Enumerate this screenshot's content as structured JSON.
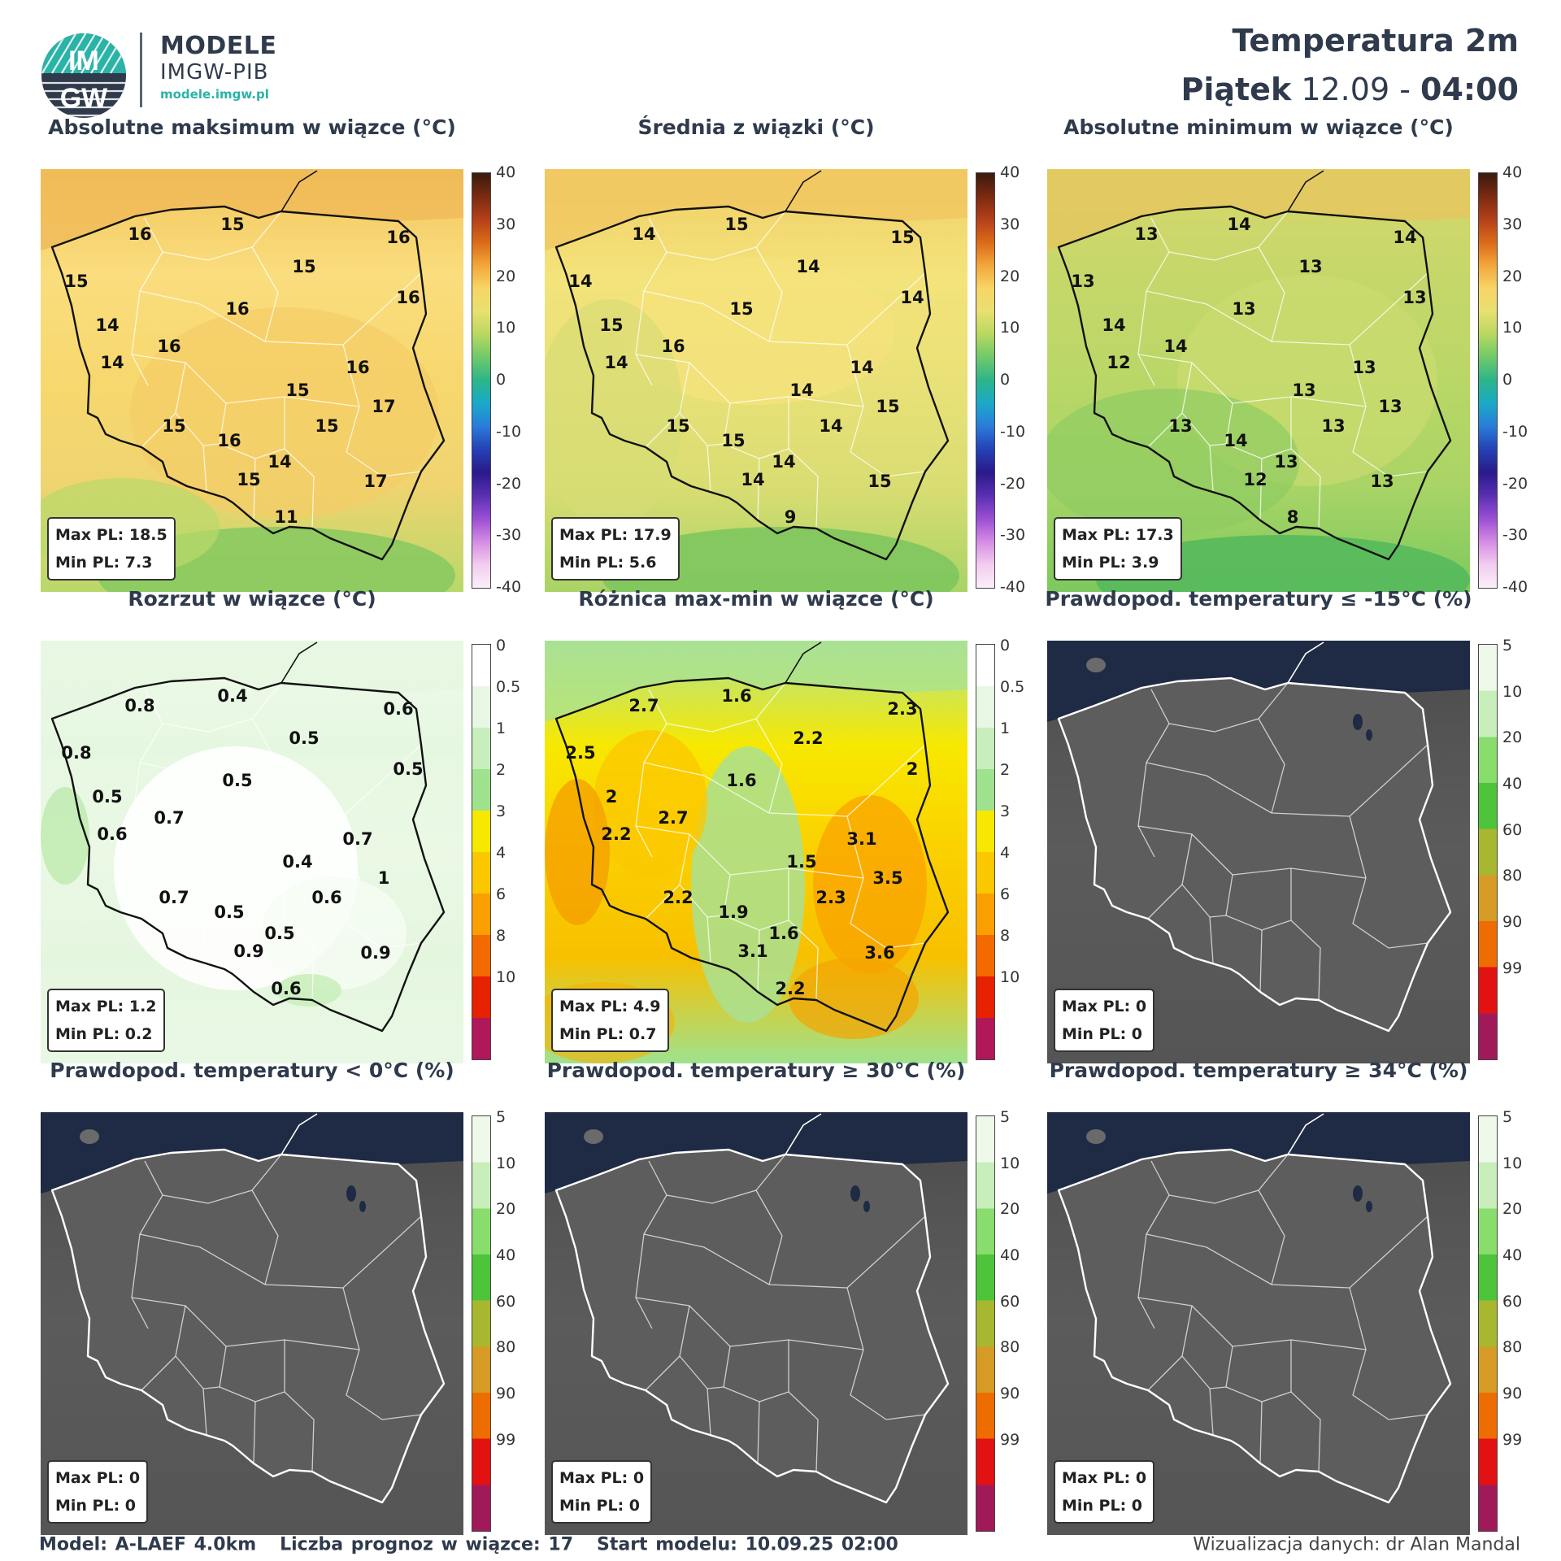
{
  "header": {
    "logo_text_top": "IM",
    "logo_text_bottom": "GW",
    "brand_main": "MODELE",
    "brand_sub": "IMGW-PIB",
    "brand_url": "modele.imgw.pl",
    "title": "Temperatura 2m",
    "day": "Piątek",
    "date": "12.09",
    "separator": "-",
    "hour": "04:00"
  },
  "colorbars": {
    "temperature": {
      "ticks": [
        "40",
        "30",
        "20",
        "10",
        "0",
        "-10",
        "-20",
        "-30",
        "-40"
      ],
      "colors": [
        "#3b1a0e",
        "#7a2a10",
        "#b3401b",
        "#db6a18",
        "#f2a63a",
        "#f7d566",
        "#e9e070",
        "#b8d860",
        "#6ec96a",
        "#2cb58a",
        "#1aa9c9",
        "#2a7bd9",
        "#2441b5",
        "#2a1a8a",
        "#5a2fb2",
        "#9b4fd3",
        "#d58ce3",
        "#f3cdef",
        "#fbeefb"
      ]
    },
    "spread": {
      "ticks": [
        "0",
        "0.5",
        "1",
        "2",
        "3",
        "4",
        "6",
        "8",
        "10"
      ],
      "colors": [
        "#ffffff",
        "#e8f7e3",
        "#c8eebd",
        "#9fe28e",
        "#f7e800",
        "#fbc800",
        "#f9a000",
        "#f26a00",
        "#e62200",
        "#b0185a"
      ]
    },
    "probability": {
      "ticks": [
        "5",
        "10",
        "20",
        "40",
        "60",
        "80",
        "90",
        "99"
      ],
      "colors": [
        "#eef9ea",
        "#c8efbb",
        "#88dd6c",
        "#4dc43a",
        "#a7b830",
        "#d69b25",
        "#ee6d00",
        "#e31212",
        "#a01a5a"
      ]
    }
  },
  "panels": [
    {
      "title": "Absolutne maksimum w wiązce (°C)",
      "kind": "temp",
      "shade": "warm",
      "stats": {
        "max": "Max PL: 18.5",
        "min": "Min PL: 7.3"
      },
      "labels": [
        "16",
        "15",
        "16",
        "15",
        "15",
        "16",
        "14",
        "16",
        "16",
        "14",
        "16",
        "15",
        "17",
        "15",
        "15",
        "16",
        "14",
        "15",
        "17",
        "11"
      ]
    },
    {
      "title": "Średnia z wiązki (°C)",
      "kind": "temp",
      "shade": "mild",
      "stats": {
        "max": "Max PL: 17.9",
        "min": "Min PL: 5.6"
      },
      "labels": [
        "14",
        "15",
        "15",
        "14",
        "14",
        "14",
        "15",
        "15",
        "16",
        "14",
        "14",
        "14",
        "15",
        "15",
        "14",
        "15",
        "14",
        "14",
        "15",
        "9"
      ]
    },
    {
      "title": "Absolutne minimum w wiązce (°C)",
      "kind": "temp",
      "shade": "cool",
      "stats": {
        "max": "Max PL: 17.3",
        "min": "Min PL: 3.9"
      },
      "labels": [
        "13",
        "14",
        "14",
        "13",
        "13",
        "13",
        "14",
        "13",
        "14",
        "12",
        "13",
        "13",
        "13",
        "13",
        "13",
        "14",
        "13",
        "12",
        "13",
        "8"
      ]
    },
    {
      "title": "Rozrzut w wiązce (°C)",
      "kind": "spread",
      "shade": "spread",
      "stats": {
        "max": "Max PL: 1.2",
        "min": "Min PL: 0.2"
      },
      "labels": [
        "0.8",
        "0.4",
        "0.6",
        "0.8",
        "0.5",
        "0.5",
        "0.5",
        "0.5",
        "0.7",
        "0.6",
        "0.7",
        "0.4",
        "1",
        "0.7",
        "0.6",
        "0.5",
        "0.5",
        "0.9",
        "0.9",
        "0.6"
      ]
    },
    {
      "title": "Różnica max-min w wiązce (°C)",
      "kind": "spread",
      "shade": "diff",
      "stats": {
        "max": "Max PL: 4.9",
        "min": "Min PL: 0.7"
      },
      "labels": [
        "2.7",
        "1.6",
        "2.3",
        "2.5",
        "2.2",
        "2",
        "2",
        "1.6",
        "2.7",
        "2.2",
        "3.1",
        "1.5",
        "3.5",
        "2.2",
        "2.3",
        "1.9",
        "1.6",
        "3.1",
        "3.6",
        "2.2"
      ]
    },
    {
      "title": "Prawdopod. temperatury ≤ -15°C (%)",
      "kind": "prob",
      "shade": "gray",
      "stats": {
        "max": "Max PL: 0",
        "min": "Min PL: 0"
      },
      "labels": []
    },
    {
      "title": "Prawdopod. temperatury < 0°C (%)",
      "kind": "prob",
      "shade": "gray",
      "stats": {
        "max": "Max PL: 0",
        "min": "Min PL: 0"
      },
      "labels": []
    },
    {
      "title": "Prawdopod. temperatury ≥ 30°C (%)",
      "kind": "prob",
      "shade": "gray",
      "stats": {
        "max": "Max PL: 0",
        "min": "Min PL: 0"
      },
      "labels": []
    },
    {
      "title": "Prawdopod. temperatury ≥ 34°C (%)",
      "kind": "prob",
      "shade": "gray",
      "stats": {
        "max": "Max PL: 0",
        "min": "Min PL: 0"
      },
      "labels": []
    }
  ],
  "footer": {
    "model": "Model: A-LAEF 4.0km",
    "members": "Liczba prognoz w wiązce: 17",
    "start": "Start modelu: 10.09.25  02:00",
    "credit": "Wizualizacja danych: dr Alan Mandal"
  }
}
